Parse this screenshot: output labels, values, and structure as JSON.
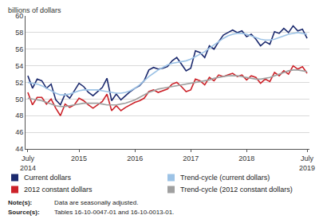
{
  "chart_data": {
    "type": "line",
    "y_label": "billions of dollars",
    "categories": [
      "July 2014",
      null,
      null,
      null,
      null,
      null,
      null,
      null,
      null,
      null,
      null,
      "2015",
      null,
      null,
      null,
      null,
      null,
      null,
      null,
      null,
      null,
      null,
      null,
      "2016",
      null,
      null,
      null,
      null,
      null,
      null,
      null,
      null,
      null,
      null,
      null,
      "2017",
      null,
      null,
      null,
      null,
      null,
      null,
      null,
      null,
      null,
      null,
      null,
      "2018",
      null,
      null,
      null,
      null,
      null,
      null,
      null,
      null,
      null,
      null,
      null,
      null,
      "July 2019"
    ],
    "series": [
      {
        "name": "Current dollars",
        "color": "#1c2a6e",
        "values": [
          52.8,
          51.3,
          52.4,
          52.2,
          51.3,
          51.8,
          49.9,
          49.3,
          50.6,
          50.1,
          51.0,
          51.9,
          51.5,
          50.8,
          50.4,
          50.9,
          51.4,
          52.5,
          49.8,
          50.6,
          49.9,
          50.4,
          50.9,
          51.3,
          51.6,
          52.2,
          53.5,
          53.8,
          53.6,
          53.7,
          53.9,
          54.6,
          55.0,
          54.2,
          53.4,
          53.7,
          55.8,
          55.6,
          55.0,
          56.4,
          56.0,
          56.9,
          57.7,
          58.0,
          58.3,
          58.0,
          58.2,
          57.5,
          57.8,
          57.2,
          56.4,
          56.9,
          56.6,
          58.1,
          57.9,
          58.5,
          58.0,
          58.8,
          58.2,
          58.4,
          57.3
        ]
      },
      {
        "name": "Trend-cycle (current dollars)",
        "color": "#9dc3e6",
        "values": [
          52.0,
          51.9,
          51.8,
          51.6,
          51.3,
          51.0,
          50.7,
          50.5,
          50.5,
          50.6,
          50.8,
          51.0,
          51.1,
          51.1,
          51.1,
          51.1,
          51.0,
          50.9,
          50.8,
          50.7,
          50.7,
          50.8,
          51.0,
          51.3,
          51.7,
          52.2,
          52.7,
          53.1,
          53.5,
          53.8,
          54.1,
          54.3,
          54.4,
          54.5,
          54.6,
          54.8,
          55.1,
          55.4,
          55.7,
          56.1,
          56.5,
          56.9,
          57.3,
          57.6,
          57.8,
          57.9,
          57.9,
          57.8,
          57.6,
          57.4,
          57.2,
          57.1,
          57.1,
          57.2,
          57.4,
          57.6,
          57.8,
          57.9,
          58.0,
          57.9,
          57.8
        ]
      },
      {
        "name": "2012 constant dollars",
        "color": "#cc2229",
        "values": [
          50.8,
          49.3,
          50.2,
          50.2,
          49.4,
          50.0,
          48.9,
          48.0,
          49.4,
          49.0,
          49.3,
          50.1,
          49.8,
          49.3,
          48.9,
          49.3,
          49.7,
          50.6,
          48.6,
          49.2,
          48.6,
          49.0,
          49.3,
          49.6,
          49.8,
          50.1,
          50.9,
          51.1,
          50.8,
          51.0,
          51.2,
          51.8,
          52.0,
          51.5,
          50.9,
          51.1,
          52.4,
          52.2,
          51.7,
          52.6,
          52.2,
          52.9,
          52.7,
          52.9,
          53.1,
          52.7,
          52.9,
          52.3,
          52.8,
          52.6,
          51.9,
          52.4,
          52.1,
          53.2,
          52.8,
          53.4,
          53.0,
          54.0,
          53.6,
          53.9,
          53.1
        ]
      },
      {
        "name": "Trend-cycle (2012 constant dollars)",
        "color": "#a0a0a0",
        "values": [
          50.1,
          50.0,
          49.9,
          49.8,
          49.6,
          49.4,
          49.2,
          49.1,
          49.1,
          49.2,
          49.3,
          49.4,
          49.5,
          49.5,
          49.5,
          49.5,
          49.4,
          49.3,
          49.3,
          49.3,
          49.4,
          49.5,
          49.7,
          49.9,
          50.2,
          50.5,
          50.8,
          51.0,
          51.2,
          51.3,
          51.4,
          51.5,
          51.6,
          51.7,
          51.8,
          51.9,
          52.0,
          52.1,
          52.2,
          52.3,
          52.5,
          52.6,
          52.7,
          52.8,
          52.8,
          52.8,
          52.7,
          52.6,
          52.5,
          52.4,
          52.4,
          52.5,
          52.6,
          52.8,
          53.0,
          53.2,
          53.4,
          53.5,
          53.5,
          53.4,
          53.3
        ]
      }
    ],
    "ylim": [
      44,
      60
    ],
    "yticks": [
      44,
      46,
      48,
      50,
      52,
      54,
      56,
      58,
      60
    ],
    "grid": true,
    "notes": [
      {
        "label": "Note(s):",
        "text": "Data are seasonally adjusted."
      },
      {
        "label": "Source(s):",
        "text": "Tables 16-10-0047-01 and 16-10-0013-01."
      }
    ]
  }
}
